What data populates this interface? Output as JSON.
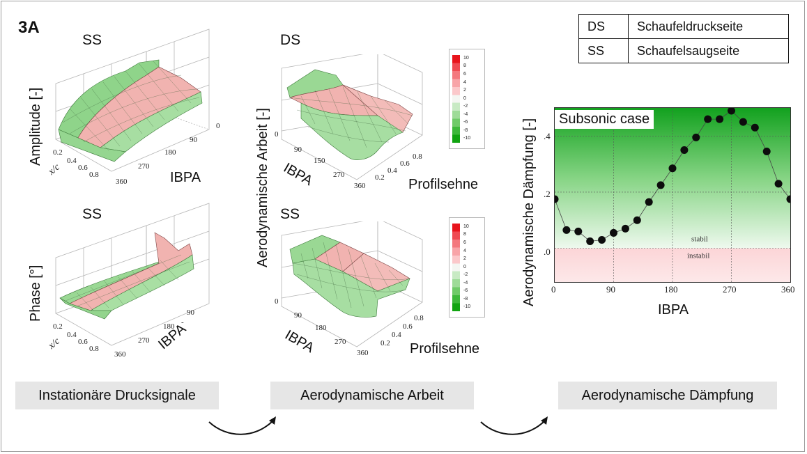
{
  "figure": {
    "label": "3A"
  },
  "legend_table": [
    {
      "key": "DS",
      "value": "Schaufeldruckseite"
    },
    {
      "key": "SS",
      "value": "Schaufelsaugseite"
    }
  ],
  "panels": {
    "amp": {
      "title": "SS",
      "ylabel": "Amplitude [-]",
      "xlabel": "x/c",
      "ibpa": "IBPA",
      "xc_ticks": [
        "0.2",
        "0.4",
        "0.6",
        "0.8"
      ],
      "ibpa_ticks": [
        "0",
        "90",
        "180",
        "270",
        "360"
      ]
    },
    "phase": {
      "title": "SS",
      "ylabel": "Phase [°]",
      "xlabel": "x/c",
      "ibpa": "IBPA",
      "xc_ticks": [
        "0.2",
        "0.4",
        "0.6",
        "0.8"
      ],
      "ibpa_ticks": [
        "90",
        "180",
        "270",
        "360"
      ],
      "ibpa_tick_dash": "-"
    },
    "work_ds": {
      "title": "DS",
      "ibpa": "IBPA",
      "profil": "Profilsehne",
      "zero": "0",
      "ibpa_ticks": [
        "90",
        "180",
        "270",
        "360"
      ],
      "ibpa_tick_partial": "150",
      "prof_ticks": [
        "0.2",
        "0.4",
        "0.6",
        "0.8"
      ]
    },
    "work_ss": {
      "title": "SS",
      "ibpa": "IBPA",
      "profil": "Profilsehne",
      "zero": "0",
      "ibpa_ticks": [
        "90",
        "180",
        "270",
        "360"
      ],
      "prof_ticks": [
        "0.2",
        "0.4",
        "0.6",
        "0.8"
      ]
    },
    "work_shared_ylabel": "Aerodynamische Arbeit [-]"
  },
  "colorbar": {
    "labels": [
      "10",
      "8",
      "6",
      "4",
      "2",
      "0",
      "-2",
      "-4",
      "-6",
      "-8",
      "-10"
    ],
    "colors": [
      "#e8141c",
      "#ef4a52",
      "#f4787e",
      "#f8a4a8",
      "#fbc8ca",
      "#f4f6f2",
      "#c8eac4",
      "#9edb98",
      "#6fca68",
      "#3db83a",
      "#11a411"
    ]
  },
  "damping_chart": {
    "ylabel": "Aerodynamische Dämpfung [-]",
    "xlabel": "IBPA",
    "badge": "Subsonic case",
    "stable_label": "stabil",
    "unstable_label": "instabil",
    "y_ticks": [
      ".0",
      ".2",
      ".4"
    ],
    "x_ticks": [
      "0",
      "90",
      "180",
      "270",
      "360"
    ]
  },
  "chart_data": {
    "type": "line",
    "title": "",
    "xlabel": "IBPA",
    "ylabel": "Aerodynamische Dämpfung [-]",
    "xlim": [
      0,
      360
    ],
    "ylim": [
      -0.12,
      0.5
    ],
    "grid": true,
    "x": [
      0,
      18,
      36,
      54,
      72,
      90,
      108,
      126,
      144,
      162,
      180,
      198,
      216,
      234,
      252,
      270,
      288,
      306,
      324,
      342,
      360
    ],
    "series": [
      {
        "values": [
          0.175,
          0.065,
          0.06,
          0.025,
          0.03,
          0.055,
          0.07,
          0.1,
          0.165,
          0.225,
          0.285,
          0.35,
          0.395,
          0.46,
          0.46,
          0.49,
          0.45,
          0.43,
          0.345,
          0.23,
          0.175
        ]
      }
    ]
  },
  "flow": {
    "step1": "Instationäre Drucksignale",
    "step2": "Aerodynamische Arbeit",
    "step3": "Aerodynamische Dämpfung"
  }
}
